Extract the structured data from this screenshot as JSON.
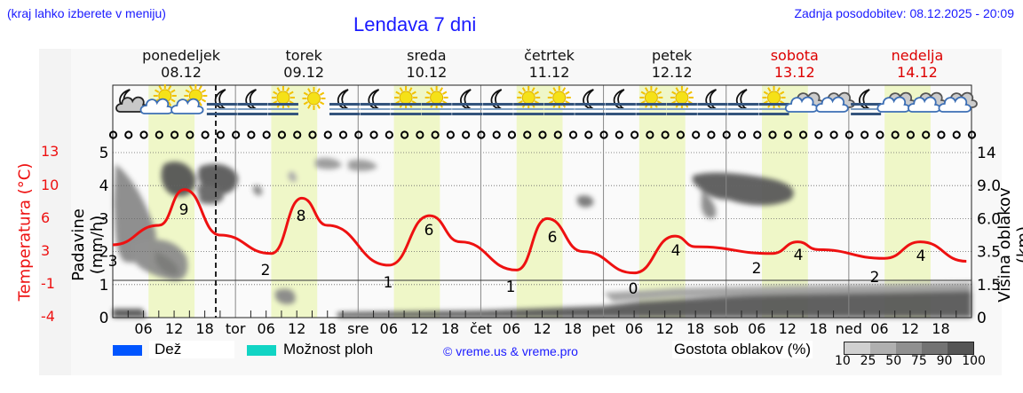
{
  "header": {
    "region_hint": "(kraj lahko izberete v meniju)",
    "title": "Lendava 7 dni",
    "last_update": "Zadnja posodobitev: 08.12.2025 - 20:09"
  },
  "days": [
    {
      "name": "ponedeljek",
      "date": "08.12",
      "weekend": false,
      "short": ""
    },
    {
      "name": "torek",
      "date": "09.12",
      "weekend": false,
      "short": "tor"
    },
    {
      "name": "sreda",
      "date": "10.12",
      "weekend": false,
      "short": "sre"
    },
    {
      "name": "četrtek",
      "date": "11.12",
      "weekend": false,
      "short": "čet"
    },
    {
      "name": "petek",
      "date": "12.12",
      "weekend": false,
      "short": "pet"
    },
    {
      "name": "sobota",
      "date": "13.12",
      "weekend": true,
      "short": "sob"
    },
    {
      "name": "nedelja",
      "date": "14.12",
      "weekend": true,
      "short": "ned"
    }
  ],
  "weather_icons": [
    "moon-cloud-icon",
    "sun-cloud-icon",
    "sun-cloud-icon",
    "moon-fog-icon",
    "moon-fog-icon",
    "sun-fog-icon",
    "sun-icon",
    "moon-fog-icon",
    "moon-fog-icon",
    "sun-fog-icon",
    "sun-fog-icon",
    "moon-fog-icon",
    "moon-fog-icon",
    "sun-fog-icon",
    "sun-fog-icon",
    "moon-fog-icon",
    "moon-fog-icon",
    "sun-fog-icon",
    "sun-fog-icon",
    "moon-fog-icon",
    "moon-fog-icon",
    "sun-fog-icon",
    "cloud-icon",
    "cloud-icon",
    "moon-fog-icon",
    "cloud-icon",
    "cloud-icon",
    "cloud-icon"
  ],
  "axes": {
    "left_temp_label": "Temperatura (°C)",
    "left_temp_ticks": [
      "13",
      "10",
      "6",
      "3",
      "-1",
      "-4"
    ],
    "left_precip_label": "Padavine (mm/h)",
    "left_precip_ticks": [
      "5",
      "4",
      "3",
      "2",
      "1",
      "0"
    ],
    "right_label": "Višina oblakov (km)",
    "right_ticks": [
      "14",
      "9.0",
      "6.0",
      "3.5",
      "1.5",
      "0"
    ],
    "x_hour_ticks": [
      "06",
      "12",
      "18"
    ]
  },
  "legend": {
    "rain_label": "Dež",
    "rain_color": "#0055ff",
    "showers_label": "Možnost ploh",
    "showers_color": "#11d4c4",
    "copyright": "© vreme.us & vreme.pro",
    "cloud_density_label": "Gostota oblakov (%)",
    "cloud_density_ticks": [
      "10",
      "25",
      "50",
      "75",
      "90",
      "100"
    ],
    "cloud_density_colors": [
      "#d0d0d0",
      "#b0b0b0",
      "#909090",
      "#737373",
      "#555555"
    ]
  },
  "chart_data": {
    "type": "line",
    "title": "Lendava 7 dni",
    "xlabel": "",
    "ylabel": "Temperatura (°C)",
    "y2label": "Padavine (mm/h)",
    "y3label": "Višina oblakov (km)",
    "ylim": [
      -4,
      13
    ],
    "grid": true,
    "categories": [
      "08.12",
      "09.12",
      "10.12",
      "11.12",
      "12.12",
      "13.12",
      "14.12"
    ],
    "series": [
      {
        "name": "Temperatura (°C) - min",
        "values": [
          3,
          2,
          1,
          1,
          0,
          2,
          2
        ]
      },
      {
        "name": "Temperatura (°C) - max",
        "values": [
          9,
          8,
          6,
          6,
          4,
          4,
          4
        ]
      },
      {
        "name": "Padavine (mm/h)",
        "values": [
          0,
          0,
          0,
          0,
          0,
          0,
          0
        ]
      }
    ],
    "temperature_hourly_approx": [
      {
        "t": "08.12 00",
        "v": 3.5
      },
      {
        "t": "08.12 09",
        "v": 5.5
      },
      {
        "t": "08.12 14",
        "v": 9.2
      },
      {
        "t": "08.12 21",
        "v": 4.5
      },
      {
        "t": "09.12 07",
        "v": 2.6
      },
      {
        "t": "09.12 13",
        "v": 8.3
      },
      {
        "t": "09.12 18",
        "v": 5.5
      },
      {
        "t": "10.12 06",
        "v": 1.4
      },
      {
        "t": "10.12 14",
        "v": 6.5
      },
      {
        "t": "10.12 20",
        "v": 3.8
      },
      {
        "t": "11.12 07",
        "v": 0.9
      },
      {
        "t": "11.12 13",
        "v": 6.2
      },
      {
        "t": "11.12 20",
        "v": 2.8
      },
      {
        "t": "12.12 06",
        "v": 0.6
      },
      {
        "t": "12.12 14",
        "v": 4.4
      },
      {
        "t": "12.12 18",
        "v": 3.3
      },
      {
        "t": "13.12 09",
        "v": 2.6
      },
      {
        "t": "13.12 14",
        "v": 3.8
      },
      {
        "t": "13.12 18",
        "v": 3.0
      },
      {
        "t": "14.12 07",
        "v": 2.1
      },
      {
        "t": "14.12 14",
        "v": 3.8
      },
      {
        "t": "14.12 23",
        "v": 1.8
      }
    ],
    "annotations": [
      "3",
      "9",
      "2",
      "8",
      "1",
      "6",
      "1",
      "6",
      "0",
      "4",
      "2",
      "4",
      "2",
      "4"
    ],
    "current_time_marker": "08.12 20:09"
  }
}
